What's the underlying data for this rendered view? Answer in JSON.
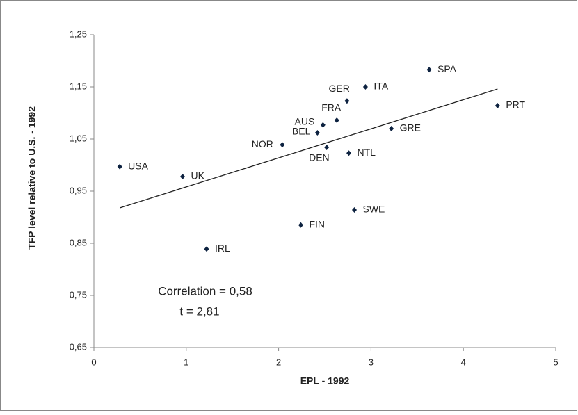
{
  "chart_data": {
    "type": "scatter",
    "x_label": "EPL - 1992",
    "y_label": "TFP level relative to U.S. - 1992",
    "categories": [
      "USA",
      "UK",
      "IRL",
      "NOR",
      "FIN",
      "BEL",
      "AUS",
      "DEN",
      "FRA",
      "GER",
      "NTL",
      "SWE",
      "ITA",
      "GRE",
      "SPA",
      "PRT"
    ],
    "x": [
      0.28,
      0.96,
      1.22,
      2.04,
      2.24,
      2.42,
      2.48,
      2.52,
      2.63,
      2.74,
      2.76,
      2.82,
      2.94,
      3.22,
      3.63,
      4.37
    ],
    "values": [
      0.997,
      0.978,
      0.839,
      1.039,
      0.885,
      1.062,
      1.077,
      1.034,
      1.086,
      1.123,
      1.023,
      0.914,
      1.15,
      1.07,
      1.183,
      1.114
    ],
    "color": "#0d2240",
    "trendline": {
      "x": [
        0.28,
        4.37
      ],
      "y": [
        0.918,
        1.146
      ],
      "color": "#222222"
    },
    "annotations": [
      "Correlation  = 0,58",
      "t = 2,81"
    ],
    "xlim": [
      0,
      5
    ],
    "xticks": [
      0,
      1,
      2,
      3,
      4,
      5
    ],
    "ylim": [
      0.65,
      1.25
    ],
    "yticks": [
      {
        "value": 0.65,
        "label": "0,65"
      },
      {
        "value": 0.75,
        "label": "0,75"
      },
      {
        "value": 0.85,
        "label": "0,85"
      },
      {
        "value": 0.95,
        "label": "0,95"
      },
      {
        "value": 1.05,
        "label": "1,05"
      },
      {
        "value": 1.15,
        "label": "1,15"
      },
      {
        "value": 1.25,
        "label": "1,25"
      }
    ]
  }
}
